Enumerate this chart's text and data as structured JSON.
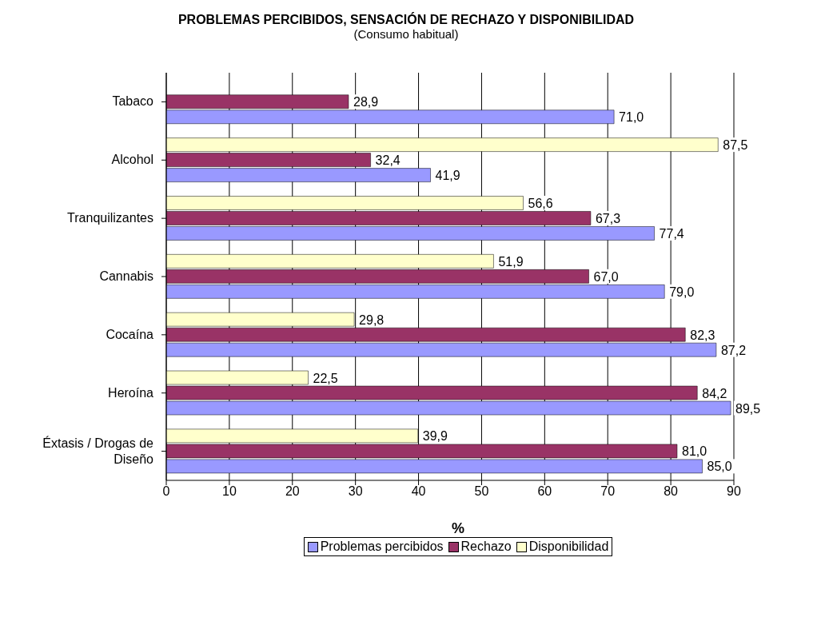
{
  "chart_data": {
    "type": "bar",
    "orientation": "horizontal",
    "title": "PROBLEMAS PERCIBIDOS, SENSACIÓN DE RECHAZO Y DISPONIBILIDAD",
    "subtitle": "(Consumo habitual)",
    "xlabel": "%",
    "categories": [
      "Tabaco",
      "Alcohol",
      "Tranquilizantes",
      "Cannabis",
      "Cocaína",
      "Heroína",
      "Éxtasis / Drogas de Diseño"
    ],
    "series": [
      {
        "name": "Problemas percibidos",
        "color": "#9999ff",
        "values": [
          71.0,
          41.9,
          77.4,
          79.0,
          87.2,
          89.5,
          85.0
        ],
        "value_labels": [
          "71,0",
          "41,9",
          "77,4",
          "79,0",
          "87,2",
          "89,5",
          "85,0"
        ]
      },
      {
        "name": "Rechazo",
        "color": "#993366",
        "values": [
          28.9,
          32.4,
          67.3,
          67.0,
          82.3,
          84.2,
          81.0
        ],
        "value_labels": [
          "28,9",
          "32,4",
          "67,3",
          "67,0",
          "82,3",
          "84,2",
          "81,0"
        ]
      },
      {
        "name": "Disponibilidad",
        "color": "#ffffcc",
        "values": [
          null,
          87.5,
          56.6,
          51.9,
          29.8,
          22.5,
          39.9
        ],
        "value_labels": [
          null,
          "87,5",
          "56,6",
          "51,9",
          "29,8",
          "22,5",
          "39,9"
        ]
      }
    ],
    "xlim": [
      0,
      90
    ],
    "xticks": [
      0,
      10,
      20,
      30,
      40,
      50,
      60,
      70,
      80,
      90
    ],
    "grid": "x",
    "legend": "bottom"
  }
}
